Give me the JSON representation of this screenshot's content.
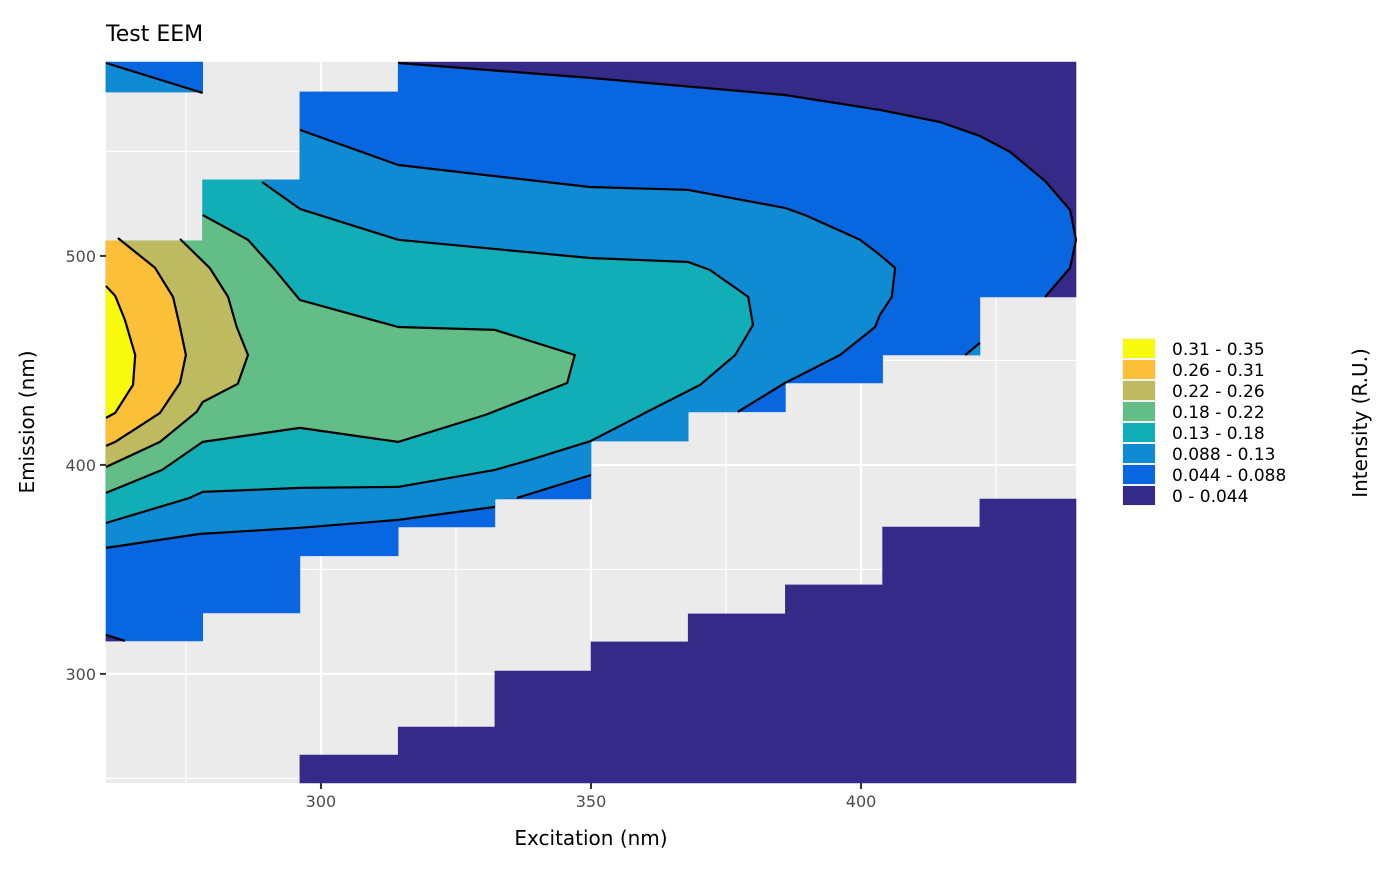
{
  "chart_data": {
    "type": "contour",
    "title": "Test EEM",
    "xlabel": "Excitation (nm)",
    "ylabel": "Emission (nm)",
    "xlim": [
      260.2,
      439.8
    ],
    "ylim": [
      247.8,
      592.8
    ],
    "x_ticks": [
      300,
      350,
      400
    ],
    "y_ticks": [
      300,
      400,
      500
    ],
    "x_minor": [
      275,
      325,
      375,
      425
    ],
    "y_minor": [
      250,
      350,
      450,
      550
    ],
    "grid": true,
    "legend": {
      "title": "Intensity (R.U.)",
      "placement": "right",
      "entries": [
        {
          "label": "0.31 - 0.35",
          "color": "#f8fa0d"
        },
        {
          "label": "0.26 - 0.31",
          "color": "#fcbf38"
        },
        {
          "label": "0.22 - 0.26",
          "color": "#bdba60"
        },
        {
          "label": "0.18 - 0.22",
          "color": "#62bd86"
        },
        {
          "label": "0.13 - 0.18",
          "color": "#12aeb8"
        },
        {
          "label": "0.088 - 0.13",
          "color": "#0f8bd3"
        },
        {
          "label": "0.044 - 0.088",
          "color": "#0866e0"
        },
        {
          "label": "0 - 0.044",
          "color": "#352a87"
        }
      ]
    },
    "regions": [
      {
        "level": "0 - 0.044",
        "color": "#352a87",
        "points": [
          [
            314.3,
            592.8
          ],
          [
            439.8,
            592.8
          ],
          [
            439.8,
            480.4
          ],
          [
            434.1,
            480.4
          ],
          [
            438.7,
            494.3
          ],
          [
            439.8,
            507.7
          ],
          [
            438.7,
            522
          ],
          [
            434.1,
            535.8
          ],
          [
            427.6,
            549.8
          ],
          [
            422,
            557.4
          ],
          [
            414.6,
            564.1
          ],
          [
            403.5,
            569.9
          ],
          [
            385.9,
            577
          ],
          [
            349.8,
            585.2
          ],
          [
            314.3,
            592.3
          ]
        ]
      },
      {
        "level": "0 - 0.044",
        "color": "#352a87",
        "points": [
          [
            296.1,
            247.8
          ],
          [
            296.1,
            261.2
          ],
          [
            314.3,
            261.2
          ],
          [
            314.3,
            274.6
          ],
          [
            332.2,
            274.6
          ],
          [
            332.2,
            301.4
          ],
          [
            350,
            301.4
          ],
          [
            350,
            315.3
          ],
          [
            368,
            315.3
          ],
          [
            368,
            328.7
          ],
          [
            386,
            328.7
          ],
          [
            386,
            342.6
          ],
          [
            404,
            342.6
          ],
          [
            404,
            370.3
          ],
          [
            422,
            370.3
          ],
          [
            422,
            383.7
          ],
          [
            439.8,
            383.7
          ],
          [
            439.8,
            247.8
          ]
        ]
      },
      {
        "level": "0.044 - 0.088",
        "color": "#0866e0",
        "points": [
          [
            260.2,
            592.8
          ],
          [
            278.1,
            592.8
          ],
          [
            278.1,
            578.5
          ],
          [
            260.2,
            578.5
          ]
        ]
      },
      {
        "level": "0.088 - 0.13",
        "color": "#0f8bd3",
        "points": [
          [
            260.2,
            592.3
          ],
          [
            278.1,
            578.5
          ],
          [
            260.2,
            578.5
          ]
        ]
      },
      {
        "level": "0.044 - 0.088",
        "color": "#0866e0",
        "points": [
          [
            260.2,
            507.2
          ],
          [
            278.1,
            507.2
          ],
          [
            278.1,
            536.4
          ],
          [
            296.1,
            536.4
          ],
          [
            296.1,
            578.5
          ],
          [
            314.3,
            578.5
          ],
          [
            314.3,
            592.3
          ],
          [
            349.8,
            585.2
          ],
          [
            385.9,
            577
          ],
          [
            403.5,
            569.9
          ],
          [
            414.6,
            564.1
          ],
          [
            422,
            557.4
          ],
          [
            427.6,
            549.8
          ],
          [
            434.1,
            535.8
          ],
          [
            438.7,
            522
          ],
          [
            439.8,
            507.7
          ],
          [
            438.7,
            494.3
          ],
          [
            434.1,
            480.4
          ],
          [
            422,
            480.4
          ],
          [
            422,
            452.6
          ],
          [
            404,
            452.6
          ],
          [
            404,
            439.2
          ],
          [
            386,
            439.2
          ],
          [
            386,
            425.4
          ],
          [
            368,
            425.4
          ],
          [
            368,
            411.5
          ],
          [
            350,
            411.5
          ],
          [
            350,
            383.7
          ],
          [
            332.2,
            383.7
          ],
          [
            332.2,
            370.3
          ],
          [
            314.3,
            370.3
          ],
          [
            314.3,
            356.5
          ],
          [
            296.1,
            356.5
          ],
          [
            296.1,
            329.2
          ],
          [
            278.1,
            329.2
          ],
          [
            278.1,
            315.8
          ],
          [
            260.2,
            315.8
          ]
        ]
      },
      {
        "level": "0 - 0.044",
        "color": "#352a87",
        "points": [
          [
            260.2,
            318.7
          ],
          [
            263.7,
            315.8
          ],
          [
            260.2,
            315.8
          ]
        ]
      },
      {
        "level": "0.088 - 0.13",
        "color": "#0f8bd3",
        "points": [
          [
            419.3,
            452.6
          ],
          [
            422,
            458.4
          ],
          [
            422,
            452.6
          ]
        ]
      },
      {
        "level": "0.088 - 0.13",
        "color": "#0f8bd3",
        "points": [
          [
            260.2,
            507.2
          ],
          [
            278.1,
            507.2
          ],
          [
            278.1,
            536.4
          ],
          [
            296.1,
            536.4
          ],
          [
            296.1,
            560.3
          ],
          [
            314.3,
            543.5
          ],
          [
            349.8,
            533
          ],
          [
            368,
            531.6
          ],
          [
            385.9,
            523
          ],
          [
            389.6,
            519.6
          ],
          [
            399.8,
            507.7
          ],
          [
            403.5,
            500.5
          ],
          [
            406.3,
            494.3
          ],
          [
            405.7,
            480.4
          ],
          [
            403.5,
            471.8
          ],
          [
            402.6,
            466
          ],
          [
            396.1,
            452.6
          ],
          [
            385.9,
            439.2
          ],
          [
            377.2,
            425.4
          ],
          [
            368,
            425.4
          ],
          [
            368,
            411.5
          ],
          [
            350,
            411.5
          ],
          [
            350,
            395.2
          ],
          [
            336.3,
            384.2
          ],
          [
            332.2,
            383.7
          ],
          [
            332.2,
            379.9
          ],
          [
            314.3,
            373.7
          ],
          [
            296.1,
            369.9
          ],
          [
            277.6,
            367
          ],
          [
            260.2,
            360.3
          ]
        ]
      },
      {
        "level": "0.13 - 0.18",
        "color": "#12aeb8",
        "points": [
          [
            260.2,
            507.2
          ],
          [
            278.1,
            507.2
          ],
          [
            278.1,
            536.4
          ],
          [
            289.1,
            536.4
          ],
          [
            296.1,
            522.5
          ],
          [
            314.3,
            507.7
          ],
          [
            349.8,
            499
          ],
          [
            368,
            497.1
          ],
          [
            372,
            493.3
          ],
          [
            379.1,
            480.4
          ],
          [
            380,
            467
          ],
          [
            376.7,
            452.6
          ],
          [
            370.2,
            438.3
          ],
          [
            360,
            424.9
          ],
          [
            350,
            411.5
          ],
          [
            338.7,
            402.4
          ],
          [
            332.2,
            397.6
          ],
          [
            314.3,
            389.5
          ],
          [
            296.1,
            389
          ],
          [
            278.1,
            387.1
          ],
          [
            275.7,
            384.2
          ],
          [
            260.2,
            372.2
          ]
        ]
      },
      {
        "level": "0.18 - 0.22",
        "color": "#62bd86",
        "points": [
          [
            260.2,
            507.2
          ],
          [
            278.1,
            507.2
          ],
          [
            278.1,
            519.6
          ],
          [
            286.5,
            507.7
          ],
          [
            291.5,
            493.3
          ],
          [
            296.1,
            478.9
          ],
          [
            314.3,
            466
          ],
          [
            332.2,
            464.6
          ],
          [
            347,
            452.6
          ],
          [
            345.6,
            439.2
          ],
          [
            330.4,
            423.9
          ],
          [
            314.3,
            411
          ],
          [
            296.1,
            417.7
          ],
          [
            278.1,
            411
          ],
          [
            270.6,
            397.6
          ],
          [
            260.2,
            386.6
          ]
        ]
      },
      {
        "level": "0.22 - 0.26",
        "color": "#bdba60",
        "points": [
          [
            260.2,
            507.2
          ],
          [
            273.9,
            507.2
          ],
          [
            279.4,
            494.3
          ],
          [
            282.8,
            480.4
          ],
          [
            284.4,
            466
          ],
          [
            286.5,
            452.6
          ],
          [
            284.6,
            438.8
          ],
          [
            278.1,
            430.1
          ],
          [
            277,
            425.4
          ],
          [
            270.2,
            411
          ],
          [
            260.2,
            399
          ]
        ]
      },
      {
        "level": "0.26 - 0.31",
        "color": "#fcbf38",
        "points": [
          [
            260.2,
            507.2
          ],
          [
            262.4,
            507.2
          ],
          [
            269.3,
            494.3
          ],
          [
            272.6,
            480.4
          ],
          [
            273.9,
            466
          ],
          [
            275,
            452.6
          ],
          [
            273.9,
            439.2
          ],
          [
            270.2,
            424.9
          ],
          [
            261.9,
            411
          ],
          [
            260.2,
            409.1
          ]
        ]
      },
      {
        "level": "0.31 - 0.35",
        "color": "#f8fa0d",
        "points": [
          [
            260.2,
            485.6
          ],
          [
            261.9,
            480.9
          ],
          [
            263.7,
            469.4
          ],
          [
            265.6,
            452.6
          ],
          [
            265.2,
            438.3
          ],
          [
            261.9,
            424.9
          ],
          [
            260.2,
            422.5
          ]
        ]
      }
    ],
    "contour_lines": [
      [
        [
          314.3,
          592.3
        ],
        [
          349.8,
          585.2
        ],
        [
          385.9,
          577
        ],
        [
          403.5,
          569.9
        ],
        [
          414.6,
          564.1
        ],
        [
          422,
          557.4
        ],
        [
          427.6,
          549.8
        ],
        [
          434.1,
          535.8
        ],
        [
          438.7,
          522
        ],
        [
          439.8,
          507.7
        ],
        [
          438.7,
          494.3
        ],
        [
          434.1,
          480.4
        ]
      ],
      [
        [
          260.2,
          592.3
        ],
        [
          278.1,
          578
        ]
      ],
      [
        [
          260.2,
          318.7
        ],
        [
          263.7,
          315.8
        ]
      ],
      [
        [
          296.1,
          560.3
        ],
        [
          314.3,
          543.5
        ],
        [
          349.8,
          533
        ],
        [
          368,
          531.6
        ],
        [
          385.9,
          523
        ],
        [
          389.6,
          519.6
        ],
        [
          399.8,
          507.7
        ],
        [
          403.5,
          500.5
        ],
        [
          406.3,
          494.3
        ],
        [
          405.7,
          480.4
        ],
        [
          403.5,
          471.8
        ],
        [
          402.6,
          466
        ],
        [
          396.1,
          452.6
        ],
        [
          385.9,
          439.2
        ],
        [
          377.2,
          425.4
        ]
      ],
      [
        [
          419.3,
          452.6
        ],
        [
          422,
          458.4
        ]
      ],
      [
        [
          260.2,
          360.3
        ],
        [
          277.6,
          367
        ],
        [
          296.1,
          369.9
        ],
        [
          314.3,
          373.7
        ],
        [
          332.2,
          379.9
        ]
      ],
      [
        [
          336.3,
          384.2
        ],
        [
          350,
          395.2
        ]
      ],
      [
        [
          289.1,
          535.4
        ],
        [
          296.1,
          522.5
        ],
        [
          314.3,
          507.7
        ],
        [
          349.8,
          499
        ],
        [
          368,
          497.1
        ],
        [
          372,
          493.3
        ],
        [
          379.1,
          480.4
        ],
        [
          380,
          467
        ],
        [
          376.7,
          452.6
        ],
        [
          370.2,
          438.3
        ],
        [
          360,
          424.9
        ],
        [
          350,
          411.5
        ],
        [
          338.7,
          402.4
        ],
        [
          332.2,
          397.6
        ],
        [
          314.3,
          389.5
        ],
        [
          296.1,
          389
        ],
        [
          278.1,
          387.1
        ],
        [
          275.7,
          384.2
        ],
        [
          260.2,
          372.2
        ]
      ],
      [
        [
          278.1,
          519.6
        ],
        [
          286.5,
          507.7
        ],
        [
          291.5,
          493.3
        ],
        [
          296.1,
          478.9
        ],
        [
          314.3,
          466
        ],
        [
          332.2,
          464.6
        ],
        [
          347,
          452.6
        ],
        [
          345.6,
          439.2
        ],
        [
          330.4,
          423.9
        ],
        [
          314.3,
          411
        ],
        [
          296.1,
          417.7
        ],
        [
          278.1,
          411
        ],
        [
          270.6,
          397.6
        ],
        [
          260.2,
          386.6
        ]
      ],
      [
        [
          273.9,
          508.1
        ],
        [
          279.4,
          494.3
        ],
        [
          282.8,
          480.4
        ],
        [
          284.4,
          466
        ],
        [
          286.5,
          452.6
        ],
        [
          284.6,
          438.8
        ],
        [
          278.1,
          430.1
        ],
        [
          277,
          425.4
        ],
        [
          270.2,
          411
        ],
        [
          260.2,
          399
        ]
      ],
      [
        [
          262.4,
          508.6
        ],
        [
          269.3,
          494.3
        ],
        [
          272.6,
          480.4
        ],
        [
          273.9,
          466
        ],
        [
          275,
          452.6
        ],
        [
          273.9,
          439.2
        ],
        [
          270.2,
          424.9
        ],
        [
          261.9,
          411
        ],
        [
          260.2,
          409.1
        ]
      ],
      [
        [
          260.2,
          485.6
        ],
        [
          261.9,
          480.9
        ],
        [
          263.7,
          469.4
        ],
        [
          265.6,
          452.6
        ],
        [
          265.2,
          438.3
        ],
        [
          261.9,
          424.9
        ],
        [
          260.2,
          422.5
        ]
      ]
    ]
  }
}
